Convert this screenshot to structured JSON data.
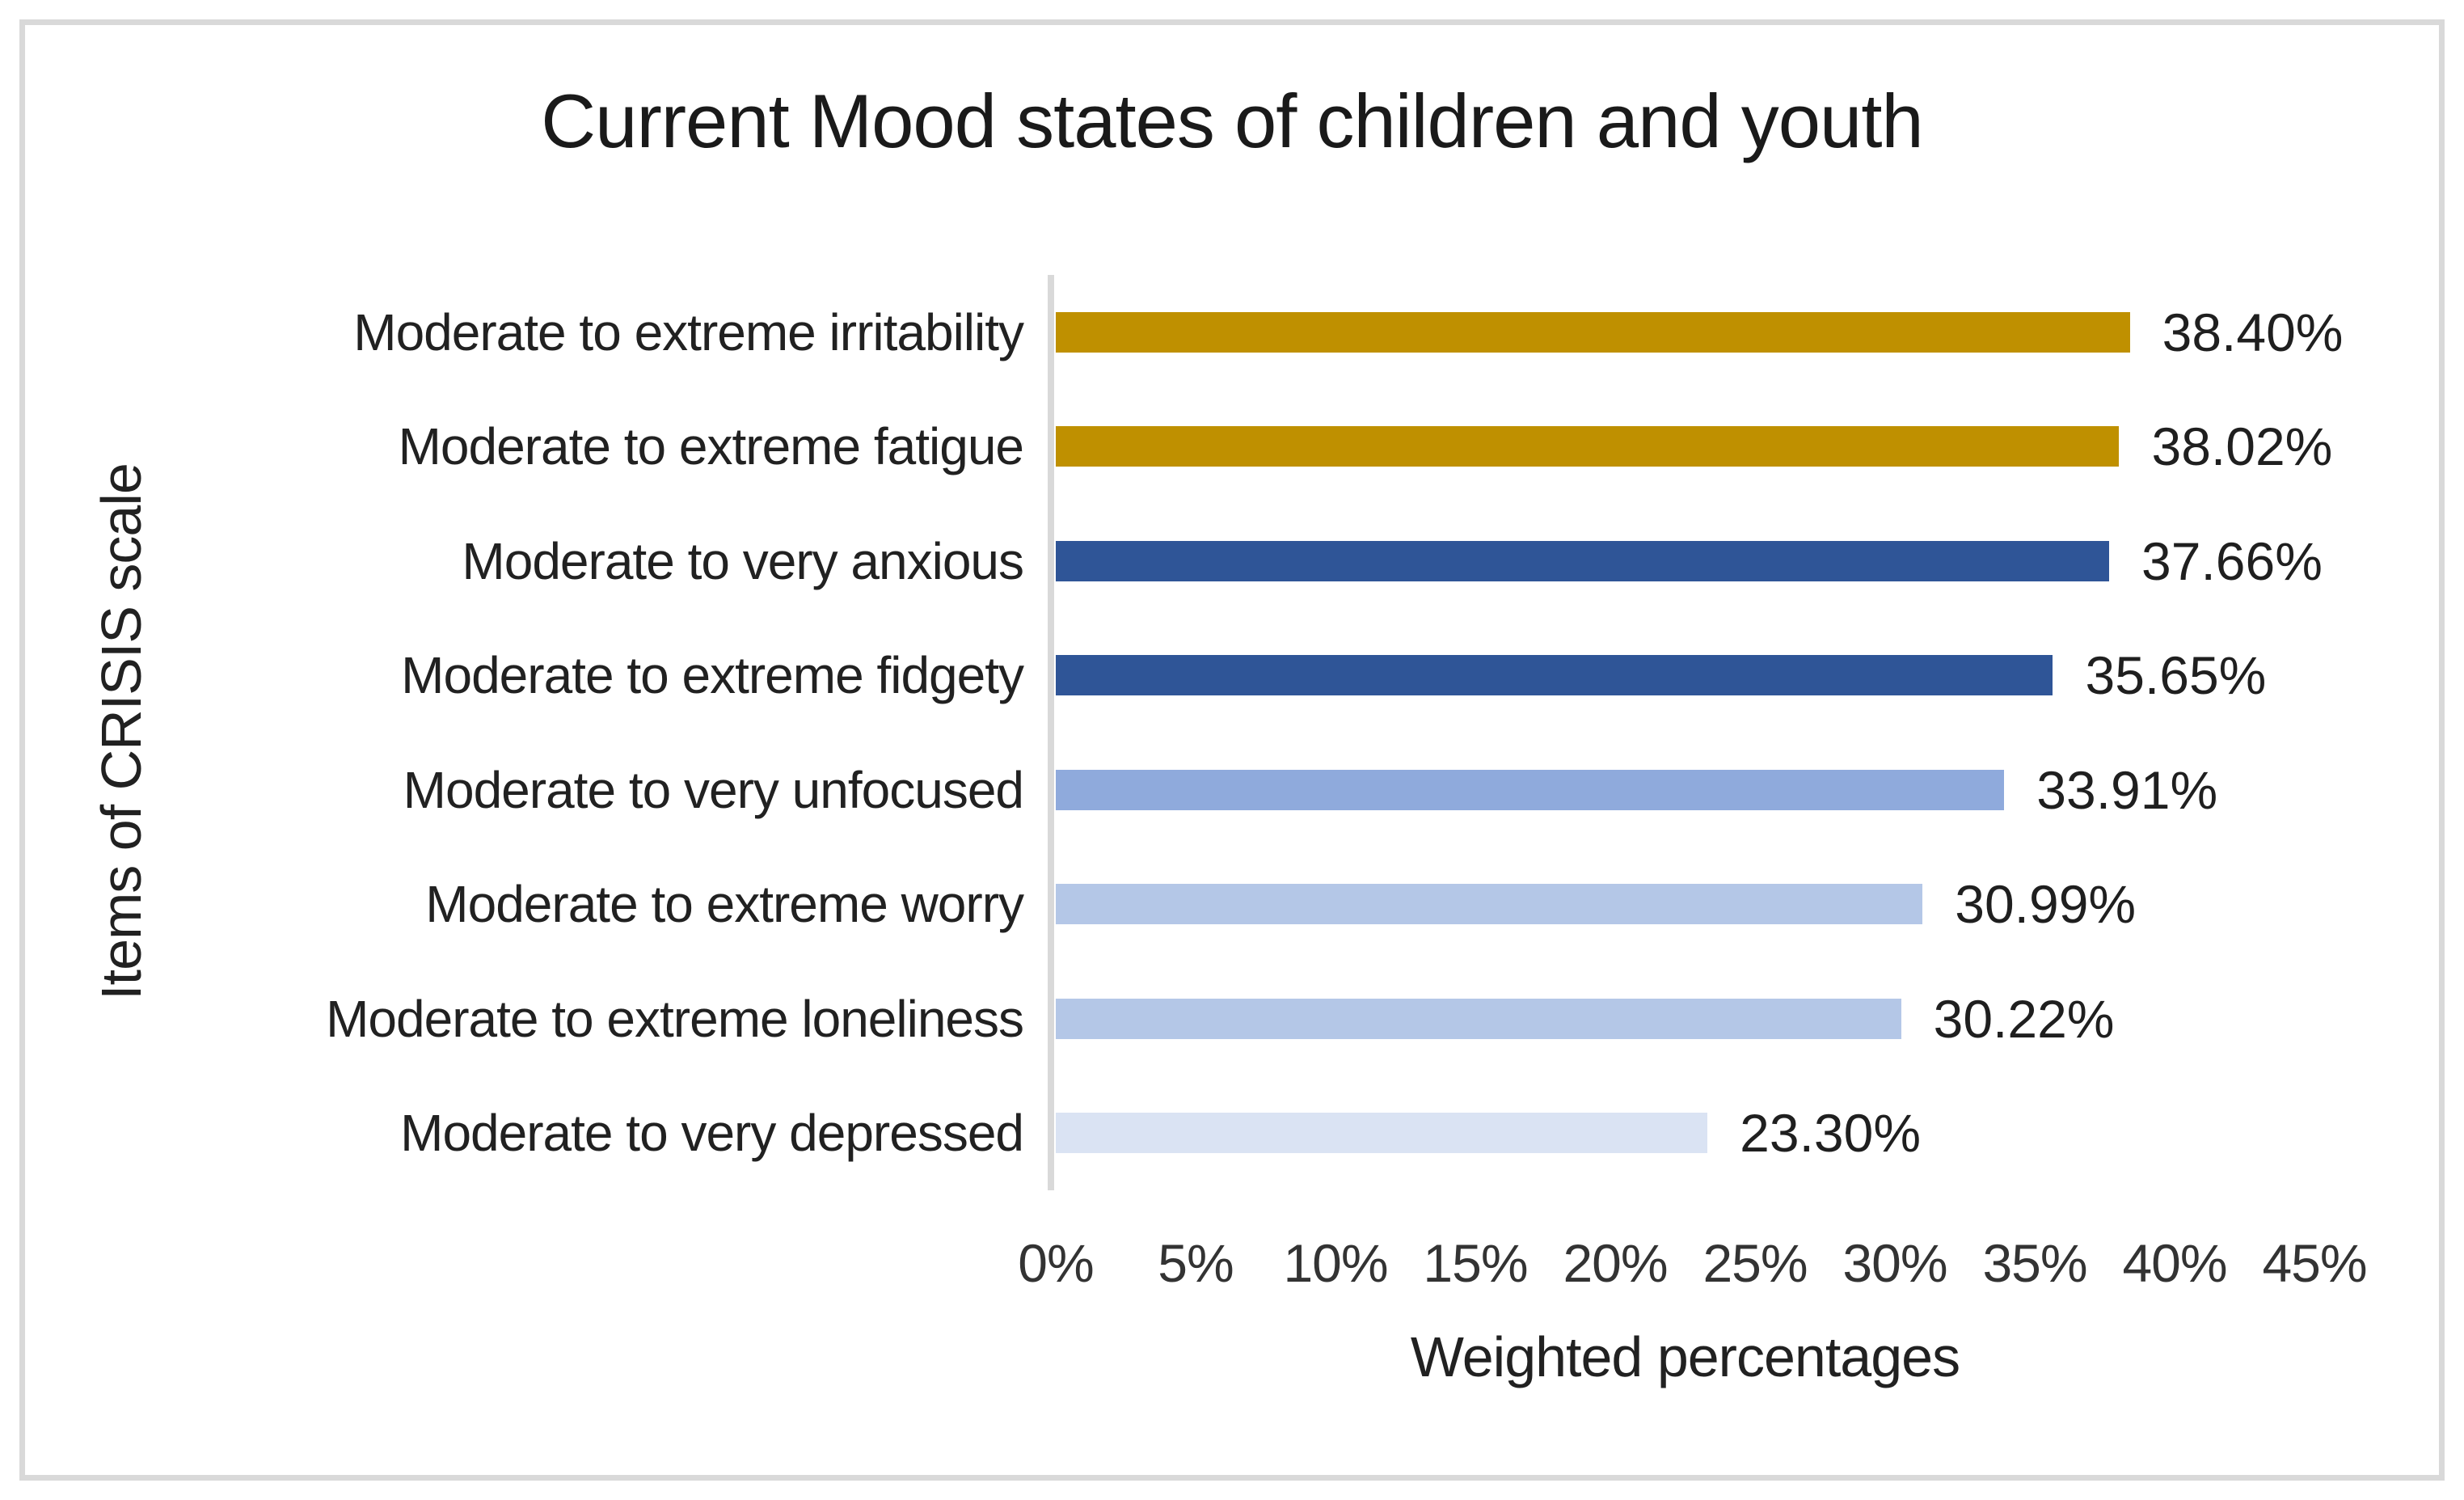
{
  "chart_data": {
    "type": "bar",
    "orientation": "horizontal",
    "title": "Current Mood states of children and youth",
    "xlabel": "Weighted percentages",
    "ylabel": "Items of CRISIS scale",
    "xlim": [
      0,
      45
    ],
    "x_tick_labels": [
      "0%",
      "5%",
      "10%",
      "15%",
      "20%",
      "25%",
      "30%",
      "35%",
      "40%",
      "45%"
    ],
    "grid": false,
    "legend_position": "none",
    "categories": [
      "Moderate to extreme irritability",
      "Moderate to extreme fatigue",
      "Moderate to very anxious",
      "Moderate to extreme fidgety",
      "Moderate to very unfocused",
      "Moderate to extreme worry",
      "Moderate to extreme loneliness",
      "Moderate to very depressed"
    ],
    "values": [
      38.4,
      38.02,
      37.66,
      35.65,
      33.91,
      30.99,
      30.22,
      23.3
    ],
    "value_labels": [
      "38.40%",
      "38.02%",
      "37.66%",
      "35.65%",
      "33.91%",
      "30.99%",
      "30.22%",
      "23.30%"
    ],
    "bar_colors": [
      "#BF9000",
      "#BF9000",
      "#2F5597",
      "#2F5597",
      "#8FAADC",
      "#B4C7E7",
      "#B4C7E7",
      "#DAE3F3"
    ],
    "colors": {
      "gold": "#BF9000",
      "dark_blue": "#2F5597",
      "medium_blue": "#8FAADC",
      "light_blue": "#B4C7E7",
      "very_light_blue": "#DAE3F3",
      "axis_line": "#D9D9D9",
      "frame_border": "#D9D9D9",
      "text": "#212121"
    }
  }
}
